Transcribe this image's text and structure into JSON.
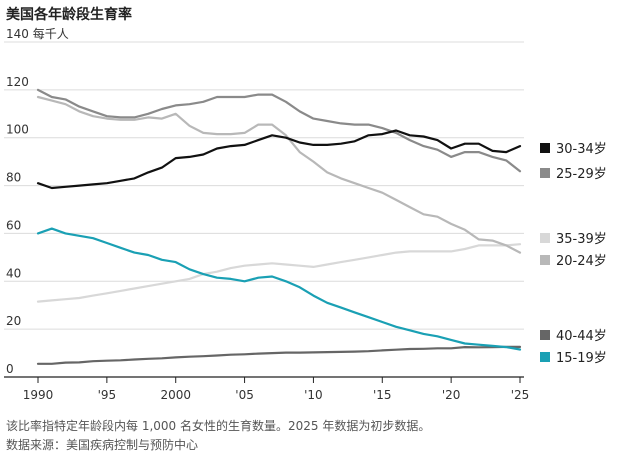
{
  "title": "美国各年龄段生育率",
  "y_unit_label": "每千人",
  "footnote": "该比率指特定年龄段内每 1,000 名女性的生育数量。2025 年数据为初步数据。",
  "source": "数据来源：美国疾病控制与预防中心",
  "colors": {
    "grid": "#dcdcdc",
    "baseline": "#222222",
    "tick": "#333333"
  },
  "chart_data": {
    "type": "line",
    "title": "美国各年龄段生育率",
    "xlabel": "",
    "ylabel": "每千人",
    "xlim": [
      1990,
      2025
    ],
    "ylim": [
      0,
      140
    ],
    "grid": true,
    "legend": "right",
    "x_ticks": [
      1990,
      1995,
      2000,
      2005,
      2010,
      2015,
      2020,
      2025
    ],
    "x_tick_labels": [
      "1990",
      "'95",
      "2000",
      "'05",
      "'10",
      "'15",
      "'20",
      "'25"
    ],
    "y_ticks": [
      0,
      20,
      40,
      60,
      80,
      100,
      120,
      140
    ],
    "y_tick_labels": [
      "0",
      "20",
      "40",
      "60",
      "80",
      "100",
      "120",
      "140"
    ],
    "x": [
      1990,
      1991,
      1992,
      1993,
      1994,
      1995,
      1996,
      1997,
      1998,
      1999,
      2000,
      2001,
      2002,
      2003,
      2004,
      2005,
      2006,
      2007,
      2008,
      2009,
      2010,
      2011,
      2012,
      2013,
      2014,
      2015,
      2016,
      2017,
      2018,
      2019,
      2020,
      2021,
      2022,
      2023,
      2024,
      2025
    ],
    "series": [
      {
        "name": "30-34岁",
        "color": "#111111",
        "values": [
          81,
          79,
          79.5,
          80,
          80.5,
          81,
          82,
          83,
          85.5,
          87.5,
          91.5,
          92,
          93,
          95.5,
          96.5,
          97,
          99,
          101,
          100,
          98,
          97,
          97,
          97.5,
          98.5,
          101,
          101.5,
          103,
          101,
          100.5,
          99,
          95.5,
          97.5,
          97.5,
          94.5,
          94,
          96.5
        ]
      },
      {
        "name": "25-29岁",
        "color": "#8a8a8a",
        "values": [
          120,
          117,
          116,
          113,
          111,
          109,
          108.5,
          108.5,
          110,
          112,
          113.5,
          114,
          115,
          117,
          117,
          117,
          118,
          118,
          115,
          111,
          108,
          107,
          106,
          105.5,
          105.5,
          104,
          102,
          99,
          96.5,
          95,
          92,
          94,
          94,
          92,
          90.5,
          86
        ]
      },
      {
        "name": "35-39岁",
        "color": "#d8d8d8",
        "values": [
          31.5,
          32,
          32.5,
          33,
          34,
          35,
          36,
          37,
          38,
          39,
          40,
          41,
          43,
          44,
          45.5,
          46.5,
          47,
          47.5,
          47,
          46.5,
          46,
          47,
          48,
          49,
          50,
          51,
          52,
          52.5,
          52.5,
          52.5,
          52.5,
          53.5,
          55,
          55,
          55,
          55.5
        ]
      },
      {
        "name": "20-24岁",
        "color": "#b8b8b8",
        "values": [
          117,
          115.5,
          114,
          111,
          109,
          108,
          107.5,
          107.5,
          108.5,
          108,
          110,
          105,
          102,
          101.5,
          101.5,
          102,
          105.5,
          105.5,
          101,
          94,
          90,
          85.5,
          83,
          81,
          79,
          77,
          74,
          71,
          68,
          67,
          64,
          61.5,
          57.5,
          57,
          55,
          52
        ]
      },
      {
        "name": "40-44岁",
        "color": "#666666",
        "values": [
          5.5,
          5.5,
          6,
          6.1,
          6.6,
          6.8,
          7,
          7.3,
          7.6,
          7.8,
          8.2,
          8.5,
          8.7,
          9,
          9.3,
          9.5,
          9.8,
          10,
          10.2,
          10.2,
          10.3,
          10.4,
          10.5,
          10.6,
          10.8,
          11.1,
          11.4,
          11.7,
          11.8,
          12,
          12,
          12.5,
          12.4,
          12.5,
          12.6,
          12.6
        ]
      },
      {
        "name": "15-19岁",
        "color": "#1aa0b4",
        "values": [
          60,
          62,
          60,
          59,
          58,
          56,
          54,
          52,
          51,
          49,
          48,
          45,
          43,
          41.5,
          41,
          40,
          41.5,
          42,
          40,
          37.5,
          34,
          31,
          29,
          27,
          25,
          23,
          21,
          19.5,
          18,
          17,
          15.5,
          14,
          13.5,
          13,
          12.5,
          11.5
        ]
      }
    ]
  }
}
